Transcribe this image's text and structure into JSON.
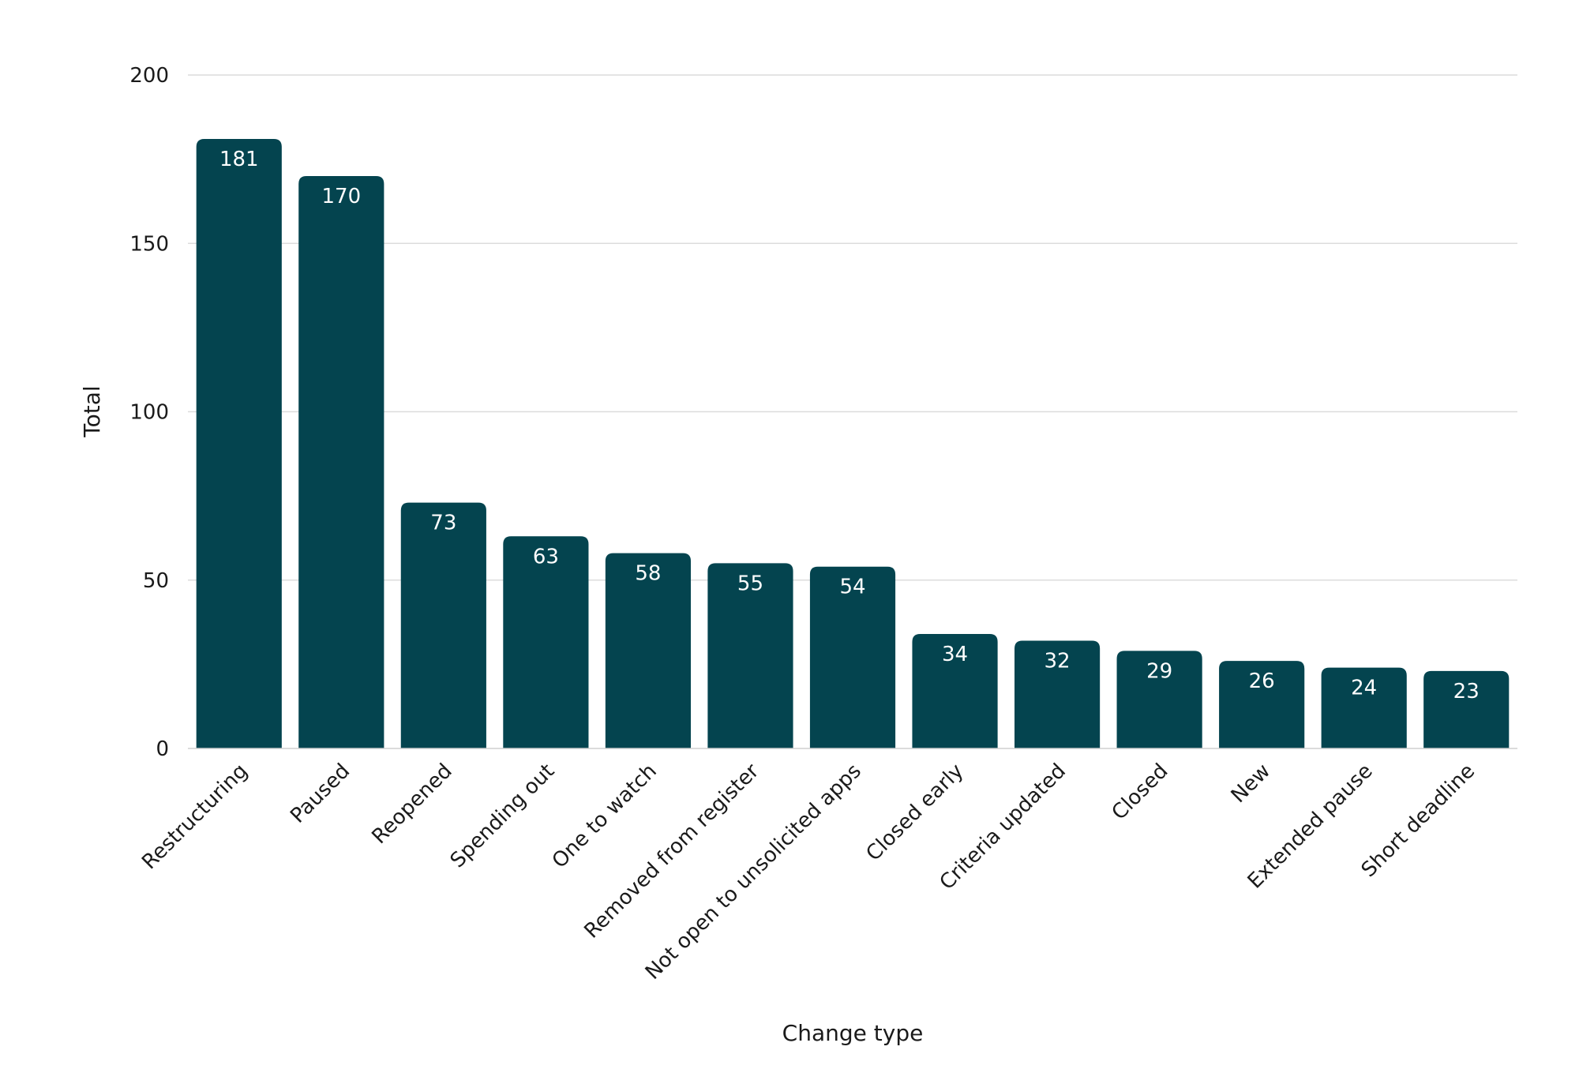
{
  "chart_data": {
    "type": "bar",
    "xlabel": "Change type",
    "ylabel": "Total",
    "ylim": [
      0,
      200
    ],
    "yticks": [
      0,
      50,
      100,
      150,
      200
    ],
    "grid": true,
    "bar_color": "#04444f",
    "categories": [
      "Restructuring",
      "Paused",
      "Reopened",
      "Spending out",
      "One to watch",
      "Removed from register",
      "Not open to unsolicited apps",
      "Closed early",
      "Criteria updated",
      "Closed",
      "New",
      "Extended pause",
      "Short deadline"
    ],
    "values": [
      181,
      170,
      73,
      63,
      58,
      55,
      54,
      34,
      32,
      29,
      26,
      24,
      23
    ]
  }
}
